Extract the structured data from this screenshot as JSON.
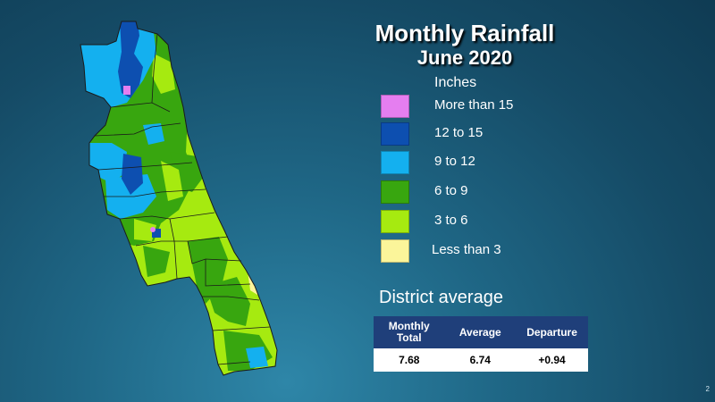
{
  "slide": {
    "title": "Monthly Rainfall",
    "subtitle": "June 2020",
    "page_number": "2"
  },
  "legend": {
    "title": "Inches",
    "items": [
      {
        "label": "More than 15",
        "color": "#e57ef0"
      },
      {
        "label": "12 to 15",
        "color": "#0d4fb0"
      },
      {
        "label": "9 to 12",
        "color": "#14b0ef"
      },
      {
        "label": "6 to 9",
        "color": "#38a60f"
      },
      {
        "label": "3 to 6",
        "color": "#a6ea10"
      },
      {
        "label": "Less than 3",
        "color": "#fbf59a"
      }
    ]
  },
  "district_average": {
    "title": "District average",
    "headers": [
      "Monthly Total",
      "Average",
      "Departure"
    ],
    "values": [
      "7.68",
      "6.74",
      "+0.94"
    ]
  },
  "map": {
    "colors": {
      "more_than_15": "#e57ef0",
      "12_to_15": "#0d4fb0",
      "9_to_12": "#14b0ef",
      "6_to_9": "#38a60f",
      "3_to_6": "#a6ea10",
      "less_than_3": "#fbf59a",
      "county_lines": "#1a1a1a"
    }
  }
}
